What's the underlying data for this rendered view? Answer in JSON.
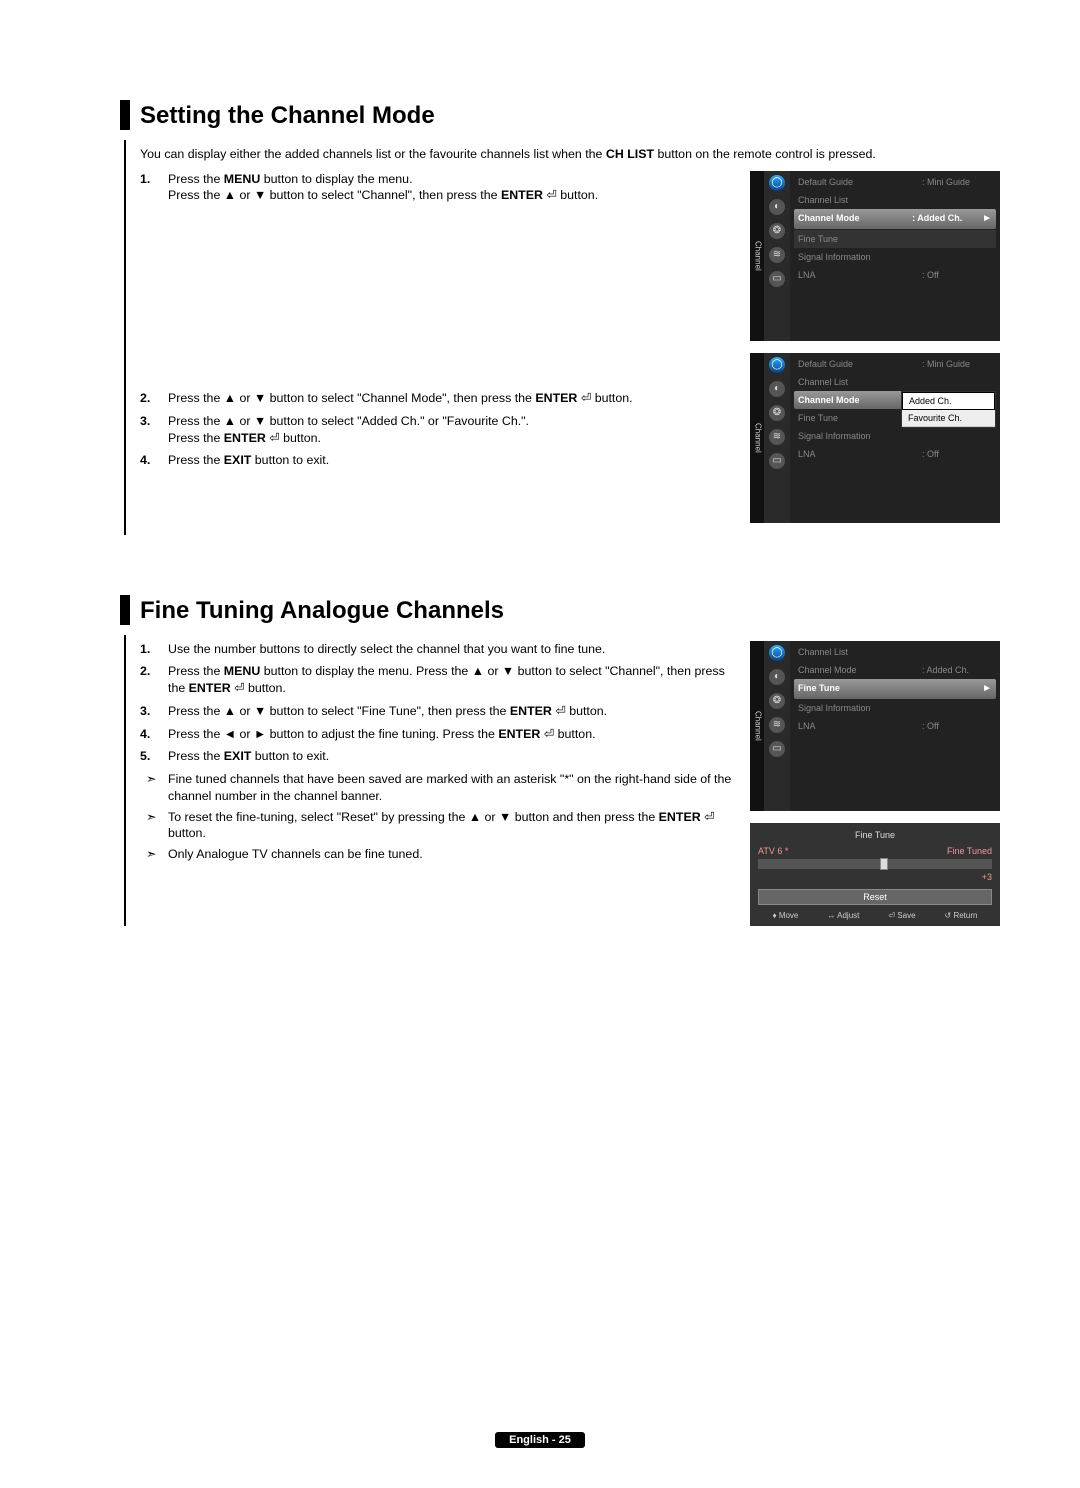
{
  "section1": {
    "title": "Setting the Channel Mode",
    "intro_a": "You can display either the added channels list or the favourite channels list when the ",
    "intro_b": "CH LIST",
    "intro_c": " button on the remote control is pressed.",
    "step1_a": "Press the ",
    "step1_b": "MENU",
    "step1_c": " button to display the menu.",
    "step1_d": "Press the ▲ or ▼ button to select \"Channel\", then press the ",
    "step1_e": "ENTER",
    "step1_f": " button.",
    "step2_a": "Press the ▲ or ▼ button to select \"Channel Mode\", then press the ",
    "step2_b": "ENTER",
    "step2_c": " button.",
    "step3_a": "Press the ▲ or ▼ button to select \"Added Ch.\" or \"Favourite Ch.\".",
    "step3_b": "Press the ",
    "step3_c": "ENTER",
    "step3_d": " button.",
    "step4_a": "Press the ",
    "step4_b": "EXIT",
    "step4_c": " button to exit."
  },
  "section2": {
    "title": "Fine Tuning Analogue Channels",
    "step1": "Use the number buttons to directly select the channel that you want to fine tune.",
    "step2_a": "Press the ",
    "step2_b": "MENU",
    "step2_c": " button to display the menu. Press the ▲ or ▼ button to select \"Channel\", then press the ",
    "step2_d": "ENTER",
    "step2_e": " button.",
    "step3_a": "Press the ▲ or ▼ button to select \"Fine Tune\", then press the ",
    "step3_b": "ENTER",
    "step3_c": " button.",
    "step4_a": "Press the ◄ or ► button to adjust the fine tuning. Press the ",
    "step4_b": "ENTER",
    "step4_c": " button.",
    "step5_a": "Press the ",
    "step5_b": "EXIT",
    "step5_c": " button to exit.",
    "note1": "Fine tuned channels that have been saved are marked with an asterisk \"*\" on the right-hand side of the channel number in the channel banner.",
    "note2_a": "To reset the fine-tuning, select \"Reset\" by pressing the ▲ or ▼ button and then press the ",
    "note2_b": "ENTER",
    "note2_c": " button.",
    "note3": "Only Analogue TV channels can be fine tuned."
  },
  "menu": {
    "tab": "Channel",
    "default_guide": "Default Guide",
    "mini_guide": ": Mini Guide",
    "channel_list": "Channel List",
    "channel_mode": "Channel Mode",
    "added_ch": ": Added Ch.",
    "fine_tune": "Fine Tune",
    "signal_info": "Signal Information",
    "lna": "LNA",
    "off": ": Off",
    "arrow": "►",
    "popup_added": "Added Ch.",
    "popup_fav": "Favourite Ch."
  },
  "finetune": {
    "title": "Fine Tune",
    "ch": "ATV 6 *",
    "status": "Fine Tuned",
    "value": "+3",
    "reset": "Reset",
    "move": "Move",
    "adjust": "Adjust",
    "save": "Save",
    "return": "Return"
  },
  "glyph": {
    "enter": "⏎",
    "updown": "♦",
    "leftright": "↔",
    "enter2": "⏎",
    "ret": "↺"
  },
  "footer": "English - 25"
}
